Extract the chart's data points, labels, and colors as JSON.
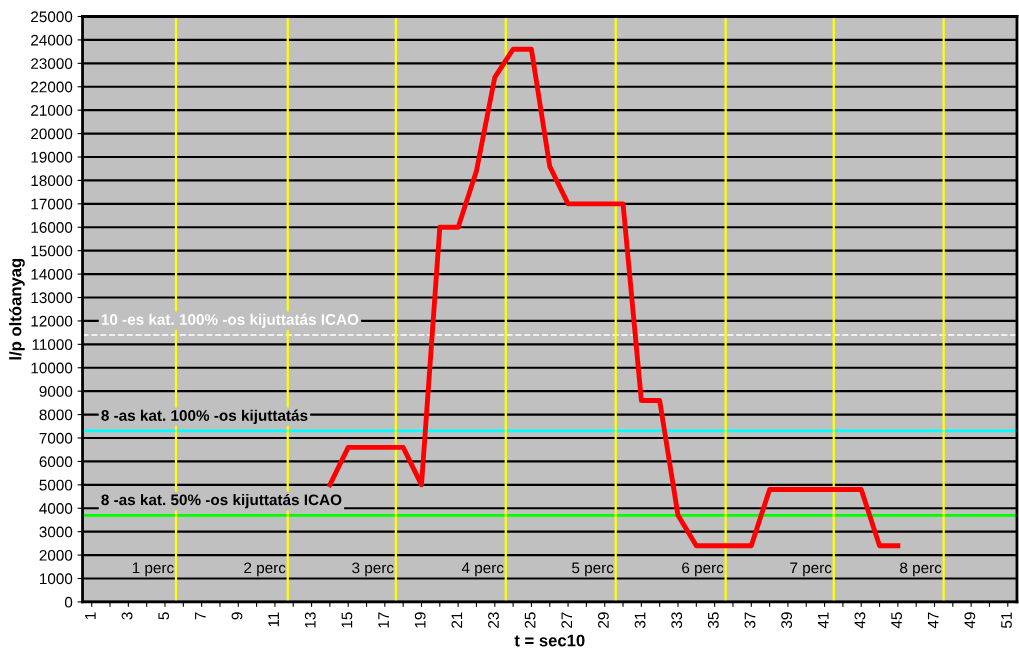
{
  "chart_data": {
    "type": "line",
    "xlabel": "t = sec10",
    "ylabel": "l/p oltóanyag",
    "series": [
      {
        "color": "#ff0000",
        "x": [
          14,
          15,
          16,
          17,
          18,
          19,
          20,
          21,
          22,
          23,
          24,
          25,
          26,
          27,
          28,
          29,
          30,
          31,
          32,
          33,
          34,
          35,
          36,
          37,
          38,
          39,
          40,
          41,
          42,
          43,
          44,
          45
        ],
        "values": [
          5000,
          6600,
          6600,
          6600,
          6600,
          5000,
          16000,
          16000,
          18400,
          22400,
          23600,
          23600,
          18600,
          17000,
          17000,
          17000,
          17000,
          8600,
          8600,
          3700,
          2400,
          2400,
          2400,
          2400,
          4800,
          4800,
          4800,
          4800,
          4800,
          4800,
          2400,
          2400
        ]
      }
    ],
    "xlim": [
      0.5,
      51.5
    ],
    "xticks": [
      1,
      {
        "value": 2,
        "label": null
      },
      3,
      {
        "value": 4,
        "label": null
      },
      5,
      {
        "value": 6,
        "label": null
      },
      7,
      {
        "value": 8,
        "label": null
      },
      9,
      {
        "value": 10,
        "label": null
      },
      11,
      {
        "value": 12,
        "label": null
      },
      13,
      {
        "value": 14,
        "label": null
      },
      15,
      {
        "value": 16,
        "label": null
      },
      17,
      {
        "value": 18,
        "label": null
      },
      19,
      {
        "value": 20,
        "label": null
      },
      21,
      {
        "value": 22,
        "label": null
      },
      23,
      {
        "value": 24,
        "label": null
      },
      25,
      {
        "value": 26,
        "label": null
      },
      27,
      {
        "value": 28,
        "label": null
      },
      29,
      {
        "value": 30,
        "label": null
      },
      31,
      {
        "value": 32,
        "label": null
      },
      33,
      {
        "value": 34,
        "label": null
      },
      35,
      {
        "value": 36,
        "label": null
      },
      37,
      {
        "value": 38,
        "label": null
      },
      39,
      {
        "value": 40,
        "label": null
      },
      41,
      {
        "value": 42,
        "label": null
      },
      43,
      {
        "value": 44,
        "label": null
      },
      45,
      {
        "value": 46,
        "label": null
      },
      47,
      {
        "value": 48,
        "label": null
      },
      49,
      {
        "value": 50,
        "label": null
      },
      51
    ],
    "ylim": [
      0,
      25000
    ],
    "yticks": [
      0,
      1000,
      2000,
      3000,
      4000,
      5000,
      6000,
      7000,
      8000,
      9000,
      10000,
      11000,
      12000,
      13000,
      14000,
      15000,
      16000,
      17000,
      18000,
      19000,
      20000,
      21000,
      22000,
      23000,
      24000,
      25000
    ],
    "grid": "y",
    "marker": "none",
    "line_style": "solid",
    "ref_lines": [
      {
        "axis": "y",
        "value": 11400,
        "label": "10 -es kat. 100% -os kijuttatás ICAO",
        "color": "#ffffff",
        "line_style": "dashed"
      },
      {
        "axis": "y",
        "value": 7300,
        "label": "8 -as kat. 100% -os kijuttatás",
        "color": "#00ffff",
        "line_style": "solid"
      },
      {
        "axis": "y",
        "value": 3700,
        "label": "8 -as kat. 50% -os kijuttatás ICAO",
        "color": "#00ff00",
        "line_style": "solid"
      },
      {
        "axis": "x",
        "value": 5.6,
        "color": "#ffff00"
      },
      {
        "axis": "x",
        "value": 11.7,
        "color": "#ffff00"
      },
      {
        "axis": "x",
        "value": 17.6,
        "color": "#ffff00"
      },
      {
        "axis": "x",
        "value": 23.6,
        "color": "#ffff00"
      },
      {
        "axis": "x",
        "value": 29.6,
        "color": "#ffff00"
      },
      {
        "axis": "x",
        "value": 35.6,
        "color": "#ffff00"
      },
      {
        "axis": "x",
        "value": 41.5,
        "color": "#ffff00"
      },
      {
        "axis": "x",
        "value": 47.5,
        "color": "#ffff00"
      }
    ],
    "annotations": [
      {
        "text": "1 perc",
        "x": 5.6,
        "y": 1400
      },
      {
        "text": "2 perc",
        "x": 11.7,
        "y": 1400
      },
      {
        "text": "3 perc",
        "x": 17.6,
        "y": 1400
      },
      {
        "text": "4 perc",
        "x": 23.6,
        "y": 1400
      },
      {
        "text": "5 perc",
        "x": 29.6,
        "y": 1400
      },
      {
        "text": "6 perc",
        "x": 35.6,
        "y": 1400
      },
      {
        "text": "7 perc",
        "x": 41.5,
        "y": 1400
      },
      {
        "text": "8 perc",
        "x": 47.5,
        "y": 1400
      }
    ]
  }
}
